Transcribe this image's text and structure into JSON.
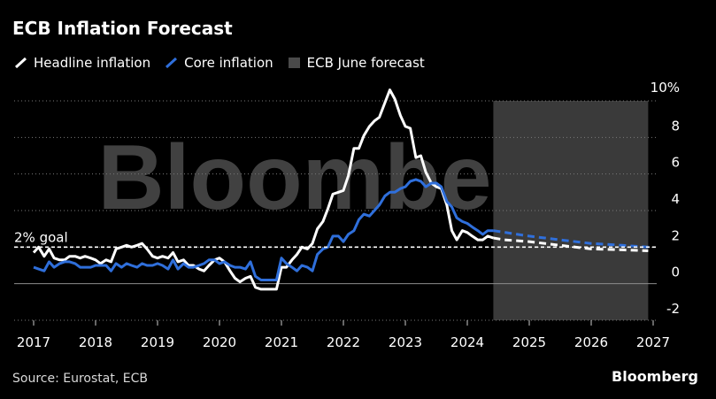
{
  "title": "ECB Inflation Forecast",
  "source": "Source: Eurostat, ECB",
  "brand": "Bloomberg",
  "watermark": "Bloomberg",
  "colors": {
    "headline": "#ffffff",
    "core": "#2f6fdb",
    "forecast_band": "#3a3a3a",
    "grid": "#7a7a7a",
    "background": "#000000"
  },
  "legend": [
    {
      "label": "Headline inflation",
      "kind": "line",
      "color": "#ffffff"
    },
    {
      "label": "Core inflation",
      "kind": "line",
      "color": "#2f6fdb"
    },
    {
      "label": "ECB June forecast",
      "kind": "box",
      "color": "#3a3a3a"
    }
  ],
  "chart_data": {
    "type": "line",
    "title": "ECB Inflation Forecast",
    "xlabel": "",
    "ylabel": "",
    "xlim": [
      2017.0,
      2027.0
    ],
    "ylim": [
      -2,
      10
    ],
    "x_ticks": [
      2017,
      2018,
      2019,
      2020,
      2021,
      2022,
      2023,
      2024,
      2025,
      2026,
      2027
    ],
    "x_tick_labels": [
      "2017",
      "2018",
      "2019",
      "2020",
      "2021",
      "2022",
      "2023",
      "2024",
      "2025",
      "2026",
      "2027"
    ],
    "y_ticks": [
      -2,
      0,
      2,
      4,
      6,
      8,
      10
    ],
    "y_tick_labels": [
      "-2",
      "0",
      "2",
      "4",
      "6",
      "8",
      "10%"
    ],
    "reference_line": {
      "value": 2.0,
      "label": "2% goal"
    },
    "forecast_band": {
      "x_start": 2024.42,
      "x_end": 2026.92,
      "label": "ECB June forecast"
    },
    "series": [
      {
        "name": "Headline inflation",
        "style": "solid",
        "points": [
          [
            2017.0,
            1.7
          ],
          [
            2017.08,
            2.0
          ],
          [
            2017.17,
            1.5
          ],
          [
            2017.25,
            1.9
          ],
          [
            2017.33,
            1.4
          ],
          [
            2017.42,
            1.3
          ],
          [
            2017.5,
            1.3
          ],
          [
            2017.58,
            1.5
          ],
          [
            2017.67,
            1.5
          ],
          [
            2017.75,
            1.4
          ],
          [
            2017.83,
            1.5
          ],
          [
            2017.92,
            1.4
          ],
          [
            2018.0,
            1.3
          ],
          [
            2018.08,
            1.1
          ],
          [
            2018.17,
            1.3
          ],
          [
            2018.25,
            1.2
          ],
          [
            2018.33,
            1.9
          ],
          [
            2018.42,
            2.0
          ],
          [
            2018.5,
            2.1
          ],
          [
            2018.58,
            2.0
          ],
          [
            2018.67,
            2.1
          ],
          [
            2018.75,
            2.2
          ],
          [
            2018.83,
            1.9
          ],
          [
            2018.92,
            1.5
          ],
          [
            2019.0,
            1.4
          ],
          [
            2019.08,
            1.5
          ],
          [
            2019.17,
            1.4
          ],
          [
            2019.25,
            1.7
          ],
          [
            2019.33,
            1.2
          ],
          [
            2019.42,
            1.3
          ],
          [
            2019.5,
            1.0
          ],
          [
            2019.58,
            1.0
          ],
          [
            2019.67,
            0.8
          ],
          [
            2019.75,
            0.7
          ],
          [
            2019.83,
            1.0
          ],
          [
            2019.92,
            1.3
          ],
          [
            2020.0,
            1.4
          ],
          [
            2020.08,
            1.2
          ],
          [
            2020.17,
            0.7
          ],
          [
            2020.25,
            0.3
          ],
          [
            2020.33,
            0.1
          ],
          [
            2020.42,
            0.3
          ],
          [
            2020.5,
            0.4
          ],
          [
            2020.58,
            -0.2
          ],
          [
            2020.67,
            -0.3
          ],
          [
            2020.75,
            -0.3
          ],
          [
            2020.83,
            -0.3
          ],
          [
            2020.92,
            -0.3
          ],
          [
            2021.0,
            0.9
          ],
          [
            2021.08,
            0.9
          ],
          [
            2021.17,
            1.3
          ],
          [
            2021.25,
            1.6
          ],
          [
            2021.33,
            2.0
          ],
          [
            2021.42,
            1.9
          ],
          [
            2021.5,
            2.2
          ],
          [
            2021.58,
            3.0
          ],
          [
            2021.67,
            3.4
          ],
          [
            2021.75,
            4.1
          ],
          [
            2021.83,
            4.9
          ],
          [
            2021.92,
            5.0
          ],
          [
            2022.0,
            5.1
          ],
          [
            2022.08,
            5.9
          ],
          [
            2022.17,
            7.4
          ],
          [
            2022.25,
            7.4
          ],
          [
            2022.33,
            8.1
          ],
          [
            2022.42,
            8.6
          ],
          [
            2022.5,
            8.9
          ],
          [
            2022.58,
            9.1
          ],
          [
            2022.67,
            9.9
          ],
          [
            2022.75,
            10.6
          ],
          [
            2022.83,
            10.1
          ],
          [
            2022.92,
            9.2
          ],
          [
            2023.0,
            8.6
          ],
          [
            2023.08,
            8.5
          ],
          [
            2023.17,
            6.9
          ],
          [
            2023.25,
            7.0
          ],
          [
            2023.33,
            6.1
          ],
          [
            2023.42,
            5.5
          ],
          [
            2023.5,
            5.3
          ],
          [
            2023.58,
            5.2
          ],
          [
            2023.67,
            4.3
          ],
          [
            2023.75,
            2.9
          ],
          [
            2023.83,
            2.4
          ],
          [
            2023.92,
            2.9
          ],
          [
            2024.0,
            2.8
          ],
          [
            2024.08,
            2.6
          ],
          [
            2024.17,
            2.4
          ],
          [
            2024.25,
            2.4
          ],
          [
            2024.33,
            2.6
          ],
          [
            2024.42,
            2.5
          ]
        ]
      },
      {
        "name": "Headline inflation (ECB June forecast)",
        "style": "dashed",
        "points": [
          [
            2024.42,
            2.5
          ],
          [
            2024.6,
            2.4
          ],
          [
            2025.0,
            2.3
          ],
          [
            2025.5,
            2.1
          ],
          [
            2026.0,
            1.9
          ],
          [
            2026.5,
            1.85
          ],
          [
            2026.92,
            1.8
          ]
        ]
      },
      {
        "name": "Core inflation",
        "style": "solid",
        "points": [
          [
            2017.0,
            0.9
          ],
          [
            2017.08,
            0.8
          ],
          [
            2017.17,
            0.7
          ],
          [
            2017.25,
            1.2
          ],
          [
            2017.33,
            0.9
          ],
          [
            2017.42,
            1.1
          ],
          [
            2017.5,
            1.2
          ],
          [
            2017.58,
            1.2
          ],
          [
            2017.67,
            1.1
          ],
          [
            2017.75,
            0.9
          ],
          [
            2017.83,
            0.9
          ],
          [
            2017.92,
            0.9
          ],
          [
            2018.0,
            1.0
          ],
          [
            2018.08,
            1.0
          ],
          [
            2018.17,
            1.0
          ],
          [
            2018.25,
            0.7
          ],
          [
            2018.33,
            1.1
          ],
          [
            2018.42,
            0.9
          ],
          [
            2018.5,
            1.1
          ],
          [
            2018.58,
            1.0
          ],
          [
            2018.67,
            0.9
          ],
          [
            2018.75,
            1.1
          ],
          [
            2018.83,
            1.0
          ],
          [
            2018.92,
            1.0
          ],
          [
            2019.0,
            1.1
          ],
          [
            2019.08,
            1.0
          ],
          [
            2019.17,
            0.8
          ],
          [
            2019.25,
            1.3
          ],
          [
            2019.33,
            0.8
          ],
          [
            2019.42,
            1.1
          ],
          [
            2019.5,
            0.9
          ],
          [
            2019.58,
            0.9
          ],
          [
            2019.67,
            1.0
          ],
          [
            2019.75,
            1.1
          ],
          [
            2019.83,
            1.3
          ],
          [
            2019.92,
            1.3
          ],
          [
            2020.0,
            1.1
          ],
          [
            2020.08,
            1.2
          ],
          [
            2020.17,
            1.0
          ],
          [
            2020.25,
            0.9
          ],
          [
            2020.33,
            0.9
          ],
          [
            2020.42,
            0.8
          ],
          [
            2020.5,
            1.2
          ],
          [
            2020.58,
            0.4
          ],
          [
            2020.67,
            0.2
          ],
          [
            2020.75,
            0.2
          ],
          [
            2020.83,
            0.2
          ],
          [
            2020.92,
            0.2
          ],
          [
            2021.0,
            1.4
          ],
          [
            2021.08,
            1.1
          ],
          [
            2021.17,
            0.9
          ],
          [
            2021.25,
            0.7
          ],
          [
            2021.33,
            1.0
          ],
          [
            2021.42,
            0.9
          ],
          [
            2021.5,
            0.7
          ],
          [
            2021.58,
            1.6
          ],
          [
            2021.67,
            1.9
          ],
          [
            2021.75,
            2.0
          ],
          [
            2021.83,
            2.6
          ],
          [
            2021.92,
            2.6
          ],
          [
            2022.0,
            2.3
          ],
          [
            2022.08,
            2.7
          ],
          [
            2022.17,
            2.9
          ],
          [
            2022.25,
            3.5
          ],
          [
            2022.33,
            3.8
          ],
          [
            2022.42,
            3.7
          ],
          [
            2022.5,
            4.0
          ],
          [
            2022.58,
            4.3
          ],
          [
            2022.67,
            4.8
          ],
          [
            2022.75,
            5.0
          ],
          [
            2022.83,
            5.0
          ],
          [
            2022.92,
            5.2
          ],
          [
            2023.0,
            5.3
          ],
          [
            2023.08,
            5.6
          ],
          [
            2023.17,
            5.7
          ],
          [
            2023.25,
            5.6
          ],
          [
            2023.33,
            5.3
          ],
          [
            2023.42,
            5.5
          ],
          [
            2023.5,
            5.5
          ],
          [
            2023.58,
            5.3
          ],
          [
            2023.67,
            4.5
          ],
          [
            2023.75,
            4.2
          ],
          [
            2023.83,
            3.6
          ],
          [
            2023.92,
            3.4
          ],
          [
            2024.0,
            3.3
          ],
          [
            2024.08,
            3.1
          ],
          [
            2024.17,
            2.9
          ],
          [
            2024.25,
            2.7
          ],
          [
            2024.33,
            2.9
          ],
          [
            2024.42,
            2.9
          ]
        ]
      },
      {
        "name": "Core inflation (ECB June forecast)",
        "style": "dashed",
        "points": [
          [
            2024.42,
            2.9
          ],
          [
            2025.0,
            2.6
          ],
          [
            2025.5,
            2.4
          ],
          [
            2026.0,
            2.2
          ],
          [
            2026.5,
            2.1
          ],
          [
            2026.92,
            2.0
          ]
        ]
      }
    ]
  }
}
